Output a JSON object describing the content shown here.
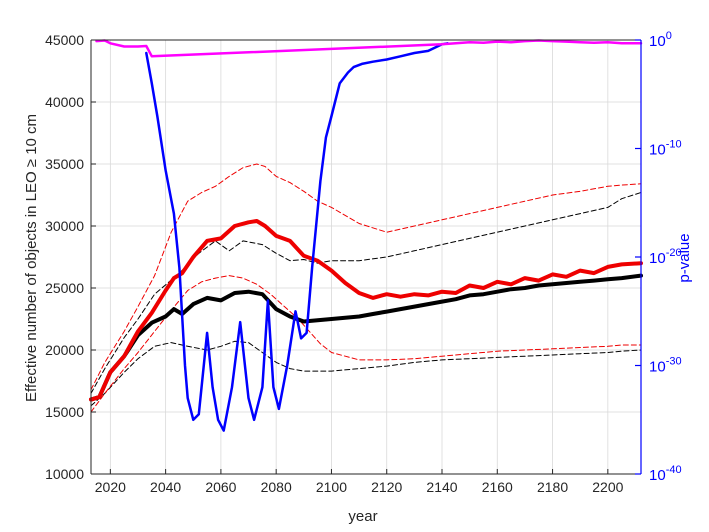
{
  "chart_data": {
    "type": "line",
    "xlabel": "year",
    "ylabel_left": "Effective number of objects in LEO ≥ 10 cm",
    "ylabel_right": "p-value",
    "xlim": [
      2013,
      2212
    ],
    "ylim_left": [
      10000,
      45000
    ],
    "ylim_right_log10": [
      -40,
      0
    ],
    "grid": true,
    "x_ticks": [
      2020,
      2040,
      2060,
      2080,
      2100,
      2120,
      2140,
      2160,
      2180,
      2200
    ],
    "y_ticks_left": [
      10000,
      15000,
      20000,
      25000,
      30000,
      35000,
      40000,
      45000
    ],
    "y_ticks_right": [
      {
        "base": "10",
        "exp": "-40",
        "log10": -40
      },
      {
        "base": "10",
        "exp": "-30",
        "log10": -30
      },
      {
        "base": "10",
        "exp": "-20",
        "log10": -20
      },
      {
        "base": "10",
        "exp": "-10",
        "log10": -10
      },
      {
        "base": "10",
        "exp": "0",
        "log10": 0
      }
    ],
    "colors": {
      "black": "#000000",
      "red": "#ee0000",
      "blue": "#0000ff",
      "magenta": "#ff00ff",
      "right_axis": "#0000ff"
    },
    "series": [
      {
        "key": "black_upper",
        "axis": "left",
        "style": "dashed",
        "color": "black",
        "x": [
          2013,
          2018,
          2025,
          2030,
          2036,
          2045,
          2052,
          2058,
          2063,
          2068,
          2075,
          2080,
          2085,
          2090,
          2095,
          2100,
          2110,
          2120,
          2130,
          2140,
          2150,
          2160,
          2170,
          2180,
          2190,
          2200,
          2205,
          2212
        ],
        "y": [
          16500,
          18500,
          21000,
          22500,
          24500,
          26200,
          27800,
          28800,
          28000,
          28800,
          28500,
          27800,
          27200,
          27300,
          27000,
          27200,
          27200,
          27500,
          28000,
          28500,
          29000,
          29500,
          30000,
          30500,
          31000,
          31500,
          32200,
          32700
        ]
      },
      {
        "key": "black_lower",
        "axis": "left",
        "style": "dashed",
        "color": "black",
        "x": [
          2013,
          2018,
          2025,
          2030,
          2036,
          2042,
          2048,
          2055,
          2060,
          2065,
          2070,
          2075,
          2080,
          2085,
          2090,
          2100,
          2110,
          2120,
          2130,
          2140,
          2150,
          2160,
          2170,
          2180,
          2190,
          2200,
          2205,
          2212
        ],
        "y": [
          15500,
          16500,
          18200,
          19300,
          20300,
          20600,
          20300,
          20000,
          20300,
          20700,
          20600,
          19800,
          19000,
          18500,
          18300,
          18300,
          18500,
          18700,
          19000,
          19200,
          19300,
          19400,
          19500,
          19600,
          19700,
          19800,
          19900,
          20000
        ]
      },
      {
        "key": "red_upper",
        "axis": "left",
        "style": "dashed",
        "color": "red",
        "x": [
          2013,
          2018,
          2025,
          2030,
          2036,
          2042,
          2048,
          2053,
          2058,
          2063,
          2068,
          2073,
          2076,
          2080,
          2085,
          2090,
          2095,
          2100,
          2110,
          2120,
          2130,
          2140,
          2150,
          2160,
          2170,
          2180,
          2190,
          2200,
          2205,
          2212
        ],
        "y": [
          16800,
          19000,
          21500,
          23500,
          26000,
          29500,
          32000,
          32700,
          33200,
          34000,
          34700,
          35000,
          34800,
          34000,
          33500,
          32800,
          32000,
          31500,
          30200,
          29500,
          30000,
          30500,
          31000,
          31500,
          32000,
          32500,
          32800,
          33200,
          33300,
          33400
        ]
      },
      {
        "key": "red_lower",
        "axis": "left",
        "style": "dashed",
        "color": "red",
        "x": [
          2013,
          2018,
          2025,
          2030,
          2036,
          2042,
          2048,
          2053,
          2058,
          2063,
          2068,
          2073,
          2078,
          2083,
          2088,
          2092,
          2096,
          2100,
          2110,
          2120,
          2130,
          2140,
          2150,
          2160,
          2170,
          2180,
          2190,
          2200,
          2205,
          2212
        ],
        "y": [
          15000,
          16500,
          18500,
          19800,
          21500,
          23200,
          24800,
          25500,
          25800,
          26000,
          25800,
          25300,
          24500,
          23500,
          22500,
          21500,
          20500,
          19800,
          19200,
          19200,
          19300,
          19500,
          19700,
          19900,
          20000,
          20100,
          20200,
          20300,
          20400,
          20400
        ]
      },
      {
        "key": "black_main",
        "axis": "left",
        "style": "solid-thick",
        "color": "black",
        "x": [
          2013,
          2016,
          2020,
          2025,
          2030,
          2035,
          2040,
          2043,
          2046,
          2050,
          2055,
          2060,
          2065,
          2070,
          2075,
          2080,
          2085,
          2090,
          2095,
          2100,
          2105,
          2110,
          2115,
          2120,
          2125,
          2130,
          2135,
          2140,
          2145,
          2150,
          2155,
          2160,
          2165,
          2170,
          2175,
          2180,
          2185,
          2190,
          2195,
          2200,
          2205,
          2212
        ],
        "y": [
          16000,
          16200,
          18200,
          19500,
          21200,
          22200,
          22700,
          23300,
          22900,
          23700,
          24200,
          24000,
          24600,
          24700,
          24500,
          23300,
          22700,
          22300,
          22400,
          22500,
          22600,
          22700,
          22900,
          23100,
          23300,
          23500,
          23700,
          23900,
          24100,
          24400,
          24500,
          24700,
          24900,
          25000,
          25200,
          25300,
          25400,
          25500,
          25600,
          25700,
          25800,
          26000
        ]
      },
      {
        "key": "red_main",
        "axis": "left",
        "style": "solid-thick",
        "color": "red",
        "x": [
          2013,
          2016,
          2020,
          2025,
          2030,
          2035,
          2040,
          2043,
          2046,
          2050,
          2055,
          2060,
          2065,
          2070,
          2073,
          2076,
          2080,
          2085,
          2090,
          2095,
          2100,
          2105,
          2110,
          2115,
          2120,
          2125,
          2130,
          2135,
          2140,
          2145,
          2150,
          2155,
          2160,
          2165,
          2170,
          2175,
          2180,
          2185,
          2190,
          2195,
          2200,
          2205,
          2212
        ],
        "y": [
          16000,
          16200,
          18200,
          19500,
          21500,
          23000,
          24800,
          25800,
          26200,
          27500,
          28800,
          29000,
          30000,
          30300,
          30400,
          30000,
          29200,
          28800,
          27600,
          27200,
          26400,
          25400,
          24600,
          24200,
          24500,
          24300,
          24500,
          24400,
          24700,
          24600,
          25200,
          25000,
          25500,
          25300,
          25800,
          25600,
          26100,
          25900,
          26400,
          26200,
          26700,
          26900,
          27000
        ]
      },
      {
        "key": "p_value_blue",
        "axis": "right_log10",
        "style": "solid",
        "color": "blue",
        "x": [
          2033,
          2035,
          2037,
          2040,
          2043,
          2045,
          2047,
          2048,
          2050,
          2052,
          2055,
          2057,
          2059,
          2061,
          2064,
          2067,
          2070,
          2072,
          2075,
          2077,
          2079,
          2081,
          2084,
          2087,
          2089,
          2091,
          2093,
          2096,
          2098,
          2100,
          2103,
          2106,
          2108,
          2111,
          2115,
          2120,
          2125,
          2130,
          2135,
          2140,
          2142
        ],
        "y": [
          -1.2,
          -4,
          -7,
          -12,
          -16,
          -21,
          -30,
          -33,
          -35,
          -34.5,
          -27,
          -32,
          -35,
          -36,
          -32,
          -26,
          -33,
          -35,
          -32,
          -24,
          -32,
          -34,
          -30,
          -25,
          -27.5,
          -27,
          -21,
          -13,
          -9,
          -7,
          -4,
          -3,
          -2.5,
          -2.2,
          -2.0,
          -1.8,
          -1.5,
          -1.2,
          -1.0,
          -0.4,
          -0.3
        ]
      },
      {
        "key": "p_value_magenta",
        "axis": "right_log10",
        "style": "solid",
        "color": "magenta",
        "x": [
          2015,
          2018,
          2020,
          2025,
          2030,
          2033,
          2035,
          2140,
          2145,
          2150,
          2155,
          2160,
          2165,
          2170,
          2175,
          2180,
          2185,
          2190,
          2195,
          2200,
          2205,
          2212
        ],
        "y": [
          -0.1,
          -0.05,
          -0.3,
          -0.6,
          -0.6,
          -0.55,
          -1.5,
          -0.4,
          -0.3,
          -0.2,
          -0.25,
          -0.15,
          -0.2,
          -0.1,
          -0.05,
          -0.1,
          -0.15,
          -0.2,
          -0.25,
          -0.2,
          -0.3,
          -0.3
        ]
      }
    ]
  }
}
